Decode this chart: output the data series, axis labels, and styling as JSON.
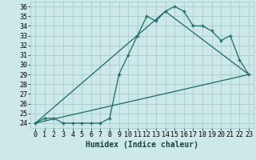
{
  "title": "",
  "xlabel": "Humidex (Indice chaleur)",
  "bg_color": "#cce8e8",
  "grid_color": "#aacfcf",
  "line_color": "#1a6b6b",
  "xlim": [
    -0.5,
    23.5
  ],
  "ylim": [
    23.5,
    36.5
  ],
  "xticks": [
    0,
    1,
    2,
    3,
    4,
    5,
    6,
    7,
    8,
    9,
    10,
    11,
    12,
    13,
    14,
    15,
    16,
    17,
    18,
    19,
    20,
    21,
    22,
    23
  ],
  "yticks": [
    24,
    25,
    26,
    27,
    28,
    29,
    30,
    31,
    32,
    33,
    34,
    35,
    36
  ],
  "series1_x": [
    0,
    1,
    2,
    3,
    4,
    5,
    6,
    7,
    8,
    9,
    10,
    11,
    12,
    13,
    14,
    15,
    16,
    17,
    18,
    19,
    20,
    21,
    22,
    23
  ],
  "series1_y": [
    24.0,
    24.5,
    24.5,
    24.0,
    24.0,
    24.0,
    24.0,
    24.0,
    24.5,
    29.0,
    31.0,
    33.0,
    35.0,
    34.5,
    35.5,
    36.0,
    35.5,
    34.0,
    34.0,
    33.5,
    32.5,
    33.0,
    30.5,
    29.0
  ],
  "series2_x": [
    0,
    23
  ],
  "series2_y": [
    24.0,
    29.0
  ],
  "series3_x": [
    0,
    14,
    23
  ],
  "series3_y": [
    24.0,
    35.5,
    29.0
  ],
  "tick_fontsize": 6,
  "label_fontsize": 7
}
